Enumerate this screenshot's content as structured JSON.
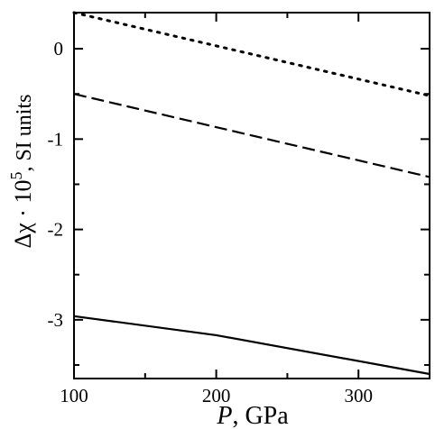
{
  "chart_data": {
    "type": "line",
    "title": "",
    "xlabel": {
      "symbol": "P",
      "rest": ", GPa"
    },
    "ylabel": {
      "prefix": "Δχ · 10",
      "exponent": "5",
      "suffix": ", SI units"
    },
    "xlim": [
      100,
      350
    ],
    "ylim": [
      -3.65,
      0.4
    ],
    "x_ticks": [
      100,
      200,
      300
    ],
    "x_tick_labels": [
      "100",
      "200",
      "300"
    ],
    "x_minor_ticks": [
      150,
      250,
      350
    ],
    "y_ticks": [
      0,
      -1,
      -2,
      -3
    ],
    "y_tick_labels": [
      "0",
      "-1",
      "-2",
      "-3"
    ],
    "y_minor_ticks": [
      -0.5,
      -1.5,
      -2.5,
      -3.5
    ],
    "grid": false,
    "legend": "none",
    "series": [
      {
        "style": "dotted",
        "x": [
          100,
          350
        ],
        "y": [
          0.4,
          -0.52
        ]
      },
      {
        "style": "dashed",
        "x": [
          100,
          350
        ],
        "y": [
          -0.5,
          -1.42
        ]
      },
      {
        "style": "solid",
        "x": [
          100,
          200,
          350
        ],
        "y": [
          -2.96,
          -3.17,
          -3.6
        ]
      }
    ]
  }
}
